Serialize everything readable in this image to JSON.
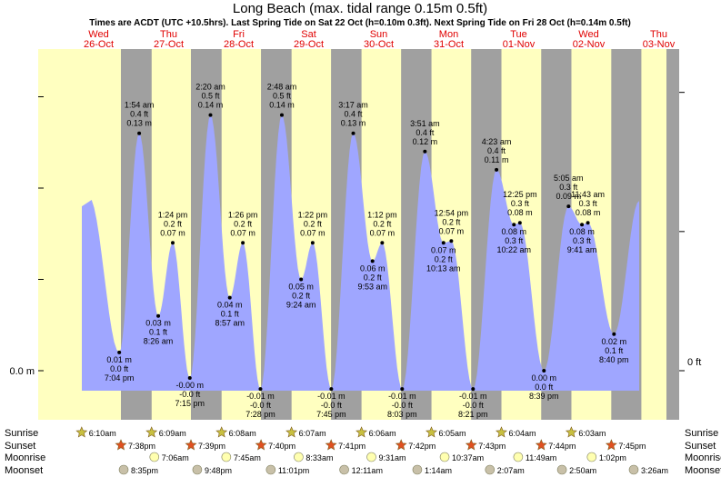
{
  "header": {
    "title": "Long Beach (max. tidal range 0.15m 0.5ft)",
    "subtitle": "Times are ACDT (UTC +10.5hrs). Last Spring Tide on Sat 22 Oct (h=0.10m 0.3ft). Next Spring Tide on Fri 28 Oct (h=0.14m 0.5ft)"
  },
  "colors": {
    "day_bg": "#ffffc0",
    "night_bg": "#a0a0a0",
    "tide_fill": "#9fa6ff",
    "day_label": "#e00000",
    "outer_bg": "#ffffff"
  },
  "chart_data": {
    "type": "area",
    "units": "m",
    "y_axis_left_label": "0.0 m",
    "y_axis_right_label": "0 ft",
    "days": [
      {
        "name": "Wed",
        "date": "26-Oct"
      },
      {
        "name": "Thu",
        "date": "27-Oct"
      },
      {
        "name": "Fri",
        "date": "28-Oct"
      },
      {
        "name": "Sat",
        "date": "29-Oct"
      },
      {
        "name": "Sun",
        "date": "30-Oct"
      },
      {
        "name": "Mon",
        "date": "31-Oct"
      },
      {
        "name": "Tue",
        "date": "01-Nov"
      },
      {
        "name": "Wed",
        "date": "02-Nov"
      },
      {
        "name": "Thu",
        "date": "03-Nov"
      }
    ],
    "tides": [
      {
        "day": 0,
        "time": "7:04 pm",
        "m": "0.01 m",
        "ft": "0.0 ft",
        "type": "low",
        "h": 0.01
      },
      {
        "day": 1,
        "time": "1:54 am",
        "m": "0.13 m",
        "ft": "0.4 ft",
        "type": "high",
        "h": 0.13
      },
      {
        "day": 1,
        "time": "8:26 am",
        "m": "0.03 m",
        "ft": "0.1 ft",
        "type": "low",
        "h": 0.03
      },
      {
        "day": 1,
        "time": "1:24 pm",
        "m": "0.07 m",
        "ft": "0.2 ft",
        "type": "high",
        "h": 0.07
      },
      {
        "day": 1,
        "time": "7:15 pm",
        "m": "-0.00 m",
        "ft": "-0.0 ft",
        "type": "low",
        "h": -0.004
      },
      {
        "day": 2,
        "time": "2:20 am",
        "m": "0.14 m",
        "ft": "0.5 ft",
        "type": "high",
        "h": 0.14
      },
      {
        "day": 2,
        "time": "8:57 am",
        "m": "0.04 m",
        "ft": "0.1 ft",
        "type": "low",
        "h": 0.04
      },
      {
        "day": 2,
        "time": "1:26 pm",
        "m": "0.07 m",
        "ft": "0.2 ft",
        "type": "high",
        "h": 0.07
      },
      {
        "day": 2,
        "time": "7:28 pm",
        "m": "-0.01 m",
        "ft": "-0.0 ft",
        "type": "low",
        "h": -0.01
      },
      {
        "day": 3,
        "time": "2:48 am",
        "m": "0.14 m",
        "ft": "0.5 ft",
        "type": "high",
        "h": 0.14
      },
      {
        "day": 3,
        "time": "9:24 am",
        "m": "0.05 m",
        "ft": "0.2 ft",
        "type": "low",
        "h": 0.05
      },
      {
        "day": 3,
        "time": "1:22 pm",
        "m": "0.07 m",
        "ft": "0.2 ft",
        "type": "high",
        "h": 0.07
      },
      {
        "day": 3,
        "time": "7:45 pm",
        "m": "-0.01 m",
        "ft": "-0.0 ft",
        "type": "low",
        "h": -0.01
      },
      {
        "day": 4,
        "time": "3:17 am",
        "m": "0.13 m",
        "ft": "0.4 ft",
        "type": "high",
        "h": 0.13
      },
      {
        "day": 4,
        "time": "9:53 am",
        "m": "0.06 m",
        "ft": "0.2 ft",
        "type": "low",
        "h": 0.06
      },
      {
        "day": 4,
        "time": "1:12 pm",
        "m": "0.07 m",
        "ft": "0.2 ft",
        "type": "high",
        "h": 0.07
      },
      {
        "day": 4,
        "time": "8:03 pm",
        "m": "-0.01 m",
        "ft": "-0.0 ft",
        "type": "low",
        "h": -0.01
      },
      {
        "day": 5,
        "time": "3:51 am",
        "m": "0.12 m",
        "ft": "0.4 ft",
        "type": "high",
        "h": 0.12
      },
      {
        "day": 5,
        "time": "10:13 am",
        "m": "0.07 m",
        "ft": "0.2 ft",
        "type": "low",
        "h": 0.07
      },
      {
        "day": 5,
        "time": "12:54 pm",
        "m": "0.07 m",
        "ft": "0.2 ft",
        "type": "high",
        "h": 0.071
      },
      {
        "day": 5,
        "time": "8:21 pm",
        "m": "-0.01 m",
        "ft": "-0.0 ft",
        "type": "low",
        "h": -0.01
      },
      {
        "day": 6,
        "time": "4:23 am",
        "m": "0.11 m",
        "ft": "0.4 ft",
        "type": "high",
        "h": 0.11
      },
      {
        "day": 6,
        "time": "10:22 am",
        "m": "0.08 m",
        "ft": "0.3 ft",
        "type": "low",
        "h": 0.08
      },
      {
        "day": 6,
        "time": "12:25 pm",
        "m": "0.08 m",
        "ft": "0.3 ft",
        "type": "high",
        "h": 0.081
      },
      {
        "day": 6,
        "time": "8:39 pm",
        "m": "0.00 m",
        "ft": "0.0 ft",
        "type": "low",
        "h": 0.0
      },
      {
        "day": 7,
        "time": "5:05 am",
        "m": "0.09 m",
        "ft": "0.3 ft",
        "type": "high",
        "h": 0.09
      },
      {
        "day": 7,
        "time": "9:41 am",
        "m": "0.08 m",
        "ft": "0.3 ft",
        "type": "low",
        "h": 0.08
      },
      {
        "day": 7,
        "time": "11:43 am",
        "m": "0.08 m",
        "ft": "0.3 ft",
        "type": "high",
        "h": 0.081
      },
      {
        "day": 7,
        "time": "8:40 pm",
        "m": "0.02 m",
        "ft": "0.1 ft",
        "type": "low",
        "h": 0.02
      }
    ],
    "sunrise": [
      "6:10am",
      "6:09am",
      "6:08am",
      "6:07am",
      "6:06am",
      "6:05am",
      "6:04am",
      "6:03am"
    ],
    "sunset": [
      "7:38pm",
      "7:39pm",
      "7:40pm",
      "7:41pm",
      "7:42pm",
      "7:43pm",
      "7:44pm",
      "7:45pm"
    ],
    "moonrise": [
      "7:06am",
      "7:45am",
      "8:33am",
      "9:31am",
      "10:37am",
      "11:49am",
      "1:02pm"
    ],
    "moonset": [
      "8:35pm",
      "9:48pm",
      "11:01pm",
      "12:11am",
      "1:14am",
      "2:07am",
      "2:50am",
      "3:26am"
    ],
    "sunrise_dayidx": [
      1,
      2,
      3,
      4,
      5,
      6,
      7,
      8
    ],
    "sunset_dayidx": [
      1,
      2,
      3,
      4,
      5,
      6,
      7,
      8
    ],
    "moonrise_dayidx": [
      2,
      3,
      4,
      5,
      6,
      7,
      8
    ],
    "moonset_dayidx": [
      1,
      2,
      3,
      5,
      6,
      7,
      8,
      9
    ],
    "row_labels": {
      "sunrise": "Sunrise",
      "sunset": "Sunset",
      "moonrise": "Moonrise",
      "moonset": "Moonset"
    }
  }
}
